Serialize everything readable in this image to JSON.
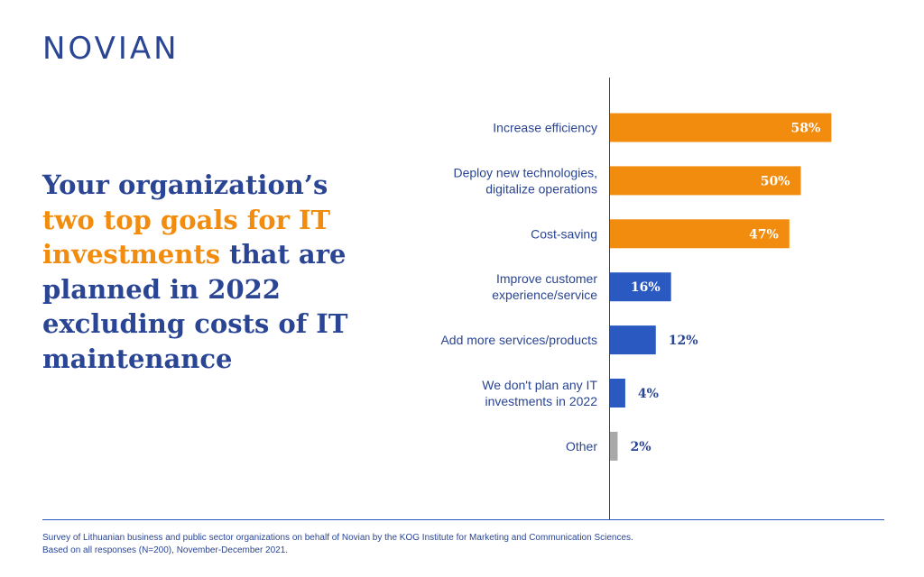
{
  "brand": {
    "logo_text": "NOVIAN"
  },
  "headline": {
    "part1": "Your organization’s ",
    "highlight": "two top goals for IT investments",
    "part2": " that are planned in 2022 excluding costs of IT maintenance"
  },
  "colors": {
    "brand_blue": "#2a4594",
    "accent_orange": "#f28c0f",
    "other_gray": "#a8a8a8"
  },
  "chart_data": {
    "type": "bar",
    "orientation": "horizontal",
    "categories": [
      [
        "Increase efficiency"
      ],
      [
        "Deploy new technologies,",
        "digitalize operations"
      ],
      [
        "Cost-saving"
      ],
      [
        "Improve customer",
        "experience/service"
      ],
      [
        "Add more services/products"
      ],
      [
        "We don't plan any IT",
        "investments in 2022"
      ],
      [
        "Other"
      ]
    ],
    "values": [
      58,
      50,
      47,
      16,
      12,
      4,
      2
    ],
    "value_labels": [
      "58%",
      "50%",
      "47%",
      "16%",
      "12%",
      "4%",
      "2%"
    ],
    "bar_colors": [
      "#f28c0f",
      "#f28c0f",
      "#f28c0f",
      "#2a59c2",
      "#2a59c2",
      "#2a59c2",
      "#a8a8a8"
    ],
    "xlim": [
      0,
      100
    ],
    "grid": false,
    "legend": "none"
  },
  "source": {
    "line1": "Survey of Lithuanian business and public sector organizations on behalf of Novian by the KOG Institute for Marketing and Communication Sciences.",
    "line2": "Based on all responses (N=200), November-December 2021."
  }
}
